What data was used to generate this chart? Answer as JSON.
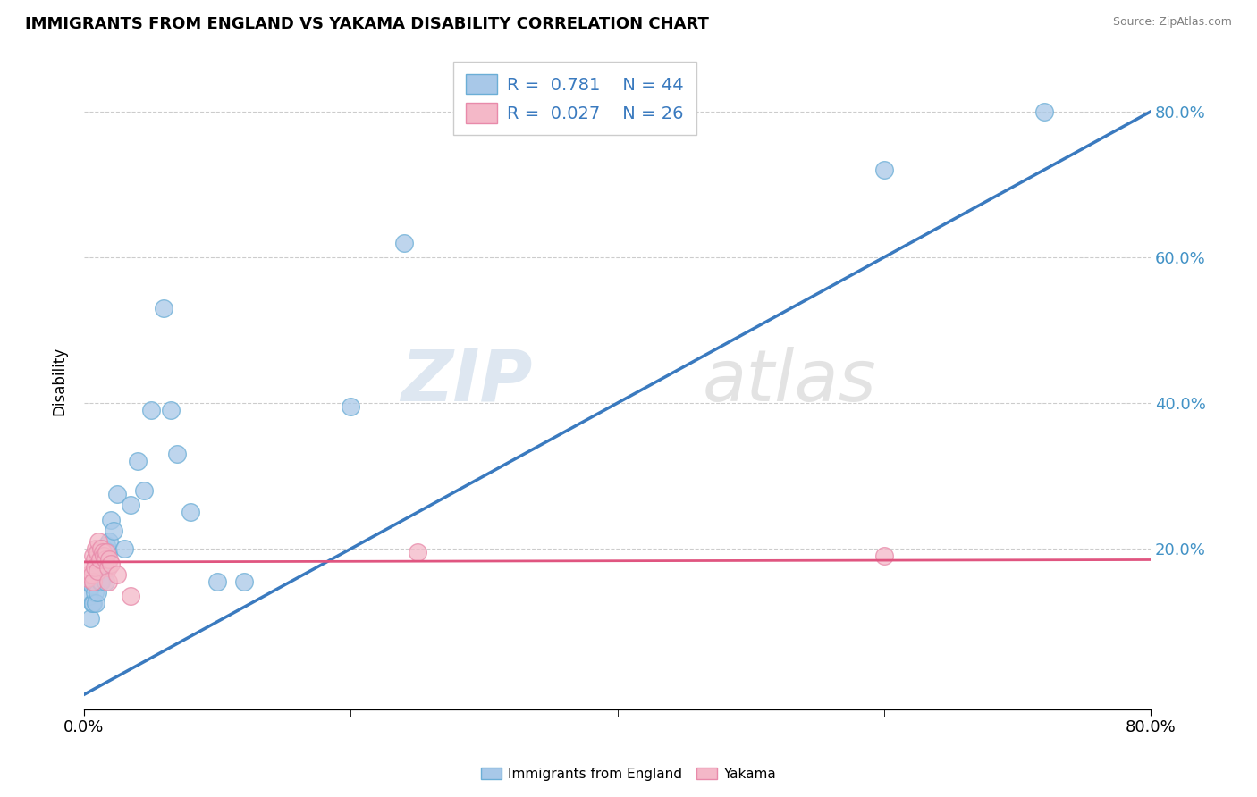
{
  "title": "IMMIGRANTS FROM ENGLAND VS YAKAMA DISABILITY CORRELATION CHART",
  "source": "Source: ZipAtlas.com",
  "ylabel": "Disability",
  "watermark_zip": "ZIP",
  "watermark_atlas": "atlas",
  "legend1_R": "0.781",
  "legend1_N": "44",
  "legend2_R": "0.027",
  "legend2_N": "26",
  "blue_color": "#a8c8e8",
  "blue_edge_color": "#6baed6",
  "pink_color": "#f4b8c8",
  "pink_edge_color": "#e88aaa",
  "blue_line_color": "#3a7abf",
  "pink_line_color": "#e05580",
  "xlim": [
    0.0,
    0.8
  ],
  "ylim": [
    -0.02,
    0.88
  ],
  "ytick_positions": [
    0.2,
    0.4,
    0.6,
    0.8
  ],
  "ytick_labels": [
    "20.0%",
    "40.0%",
    "60.0%",
    "80.0%"
  ],
  "blue_scatter_x": [
    0.003,
    0.004,
    0.005,
    0.005,
    0.006,
    0.006,
    0.007,
    0.007,
    0.008,
    0.008,
    0.009,
    0.009,
    0.01,
    0.01,
    0.011,
    0.012,
    0.012,
    0.013,
    0.013,
    0.014,
    0.015,
    0.016,
    0.016,
    0.017,
    0.018,
    0.019,
    0.02,
    0.022,
    0.025,
    0.03,
    0.035,
    0.04,
    0.045,
    0.05,
    0.06,
    0.065,
    0.07,
    0.08,
    0.1,
    0.12,
    0.2,
    0.24,
    0.6,
    0.72
  ],
  "blue_scatter_y": [
    0.155,
    0.135,
    0.16,
    0.105,
    0.15,
    0.125,
    0.155,
    0.125,
    0.16,
    0.14,
    0.165,
    0.125,
    0.17,
    0.14,
    0.185,
    0.175,
    0.155,
    0.18,
    0.155,
    0.185,
    0.2,
    0.19,
    0.155,
    0.205,
    0.195,
    0.21,
    0.24,
    0.225,
    0.275,
    0.2,
    0.26,
    0.32,
    0.28,
    0.39,
    0.53,
    0.39,
    0.33,
    0.25,
    0.155,
    0.155,
    0.395,
    0.62,
    0.72,
    0.8
  ],
  "pink_scatter_x": [
    0.003,
    0.004,
    0.005,
    0.006,
    0.007,
    0.007,
    0.008,
    0.008,
    0.009,
    0.01,
    0.01,
    0.011,
    0.012,
    0.013,
    0.014,
    0.015,
    0.016,
    0.017,
    0.018,
    0.018,
    0.019,
    0.02,
    0.025,
    0.035,
    0.25,
    0.6
  ],
  "pink_scatter_y": [
    0.16,
    0.165,
    0.175,
    0.165,
    0.19,
    0.155,
    0.185,
    0.175,
    0.2,
    0.195,
    0.17,
    0.21,
    0.185,
    0.2,
    0.195,
    0.19,
    0.185,
    0.195,
    0.175,
    0.155,
    0.185,
    0.18,
    0.165,
    0.135,
    0.195,
    0.19
  ],
  "blue_line_x": [
    0.0,
    0.8
  ],
  "blue_line_y": [
    0.0,
    0.8
  ],
  "pink_line_x": [
    0.0,
    0.8
  ],
  "pink_line_y": [
    0.182,
    0.185
  ]
}
